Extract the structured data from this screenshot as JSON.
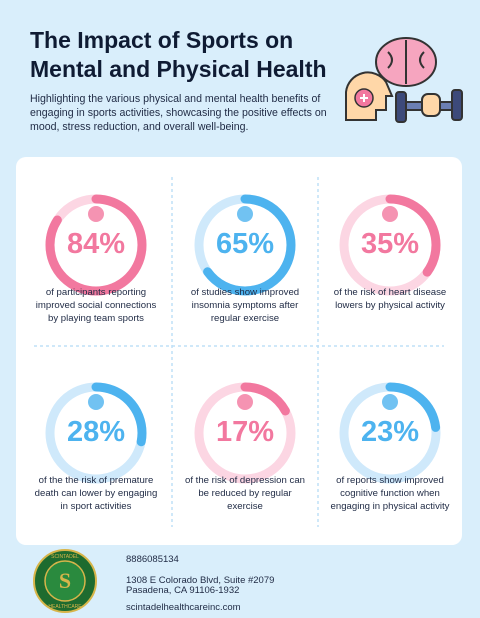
{
  "header": {
    "title": "The Impact of Sports on Mental and Physical Health",
    "subtitle": "Highlighting the various physical and mental health benefits of engaging in sports activities, showcasing the positive effects on mood, stress reduction, and overall well-being."
  },
  "stats": [
    {
      "value": "84%",
      "caption": "of participants reporting improved social connections by playing team sports",
      "color": "#f2789f",
      "track": "#fcd6e3"
    },
    {
      "value": "65%",
      "caption": "of studies show improved insomnia symptoms after regular exercise",
      "color": "#4db3ef",
      "track": "#cfe9fb"
    },
    {
      "value": "35%",
      "caption": "of the risk of heart disease lowers by physical activity",
      "color": "#f2789f",
      "track": "#fcd6e3"
    },
    {
      "value": "28%",
      "caption": "of the the risk of premature death can lower by engaging in sport activities",
      "color": "#4db3ef",
      "track": "#cfe9fb"
    },
    {
      "value": "17%",
      "caption": "of the risk of depression can be reduced by regular exercise",
      "color": "#f2789f",
      "track": "#fcd6e3"
    },
    {
      "value": "23%",
      "caption": "of reports show improved cognitive function when engaging in physical activity",
      "color": "#4db3ef",
      "track": "#cfe9fb"
    }
  ],
  "footer": {
    "logo_top": "SCINTADEL",
    "logo_bottom": "HEALTHCARE",
    "phone": "8886085134",
    "address_line1": "1308 E Colorado Blvd, Suite #2079",
    "address_line2": "Pasadena, CA 91106-1932",
    "website": "scintadelhealthcareinc.com"
  }
}
